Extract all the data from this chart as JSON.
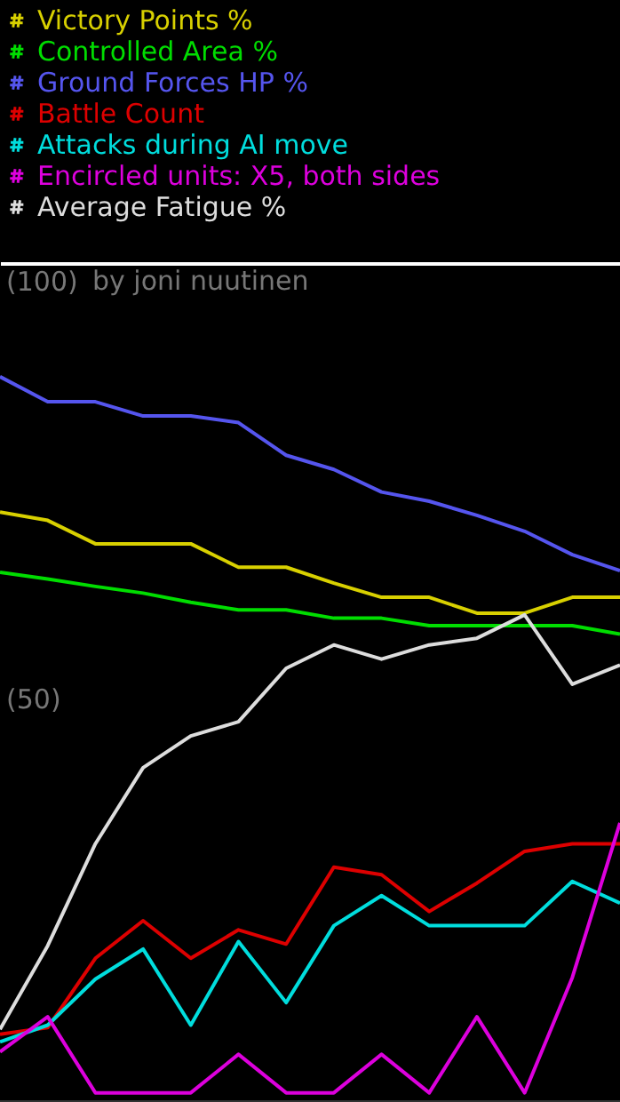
{
  "chart_data": {
    "type": "line",
    "categories": [
      null,
      null,
      null,
      null,
      null,
      null,
      null,
      null,
      null,
      null,
      null,
      null,
      null,
      null
    ],
    "ylim": [
      1.7,
      102.1
    ],
    "yticks": [
      {
        "value": 100,
        "label": "(100)"
      },
      {
        "value": 50,
        "label": "(50)"
      }
    ],
    "tick_labels": "y",
    "grid": false,
    "legend": "top left",
    "marker": "none",
    "line_style": "solid",
    "annotations": [
      "by joni nuutinen"
    ],
    "series": [
      {
        "name": "Victory Points %",
        "color": "#d8d000",
        "values": [
          72.3,
          71.3,
          68.5,
          68.5,
          68.5,
          65.7,
          65.7,
          63.8,
          62.1,
          62.1,
          60.2,
          60.2,
          62.1,
          62.1
        ]
      },
      {
        "name": "Controlled Area %",
        "color": "#00dd00",
        "values": [
          65.1,
          64.3,
          63.4,
          62.6,
          61.5,
          60.6,
          60.6,
          59.6,
          59.6,
          58.7,
          58.7,
          58.7,
          58.7,
          57.7
        ]
      },
      {
        "name": "Ground Forces HP %",
        "color": "#5555ee",
        "values": [
          88.5,
          85.5,
          85.5,
          83.8,
          83.8,
          83.0,
          79.1,
          77.4,
          74.7,
          73.6,
          71.9,
          70.0,
          67.2,
          65.3
        ]
      },
      {
        "name": "Battle Count",
        "color": "#dd0000",
        "values": [
          9.8,
          10.6,
          18.9,
          23.4,
          18.9,
          22.3,
          20.6,
          29.8,
          28.9,
          24.5,
          27.9,
          31.7,
          32.6,
          32.6
        ]
      },
      {
        "name": "Attacks during AI move",
        "color": "#00dddd",
        "values": [
          8.9,
          10.9,
          16.4,
          20.0,
          10.9,
          20.9,
          13.6,
          22.8,
          26.4,
          22.8,
          22.8,
          22.8,
          28.1,
          25.5
        ]
      },
      {
        "name": "Encircled units: X5, both sides",
        "color": "#dd00dd",
        "values": [
          7.7,
          11.9,
          2.8,
          2.8,
          2.8,
          7.4,
          2.8,
          2.8,
          7.4,
          2.8,
          11.9,
          2.8,
          16.6,
          35.1
        ]
      },
      {
        "name": "Average Fatigue %",
        "color": "#dddddd",
        "values": [
          10.4,
          20.4,
          32.6,
          41.7,
          45.5,
          47.2,
          53.6,
          56.4,
          54.7,
          56.4,
          57.2,
          60.0,
          51.7,
          54.0
        ]
      }
    ]
  }
}
